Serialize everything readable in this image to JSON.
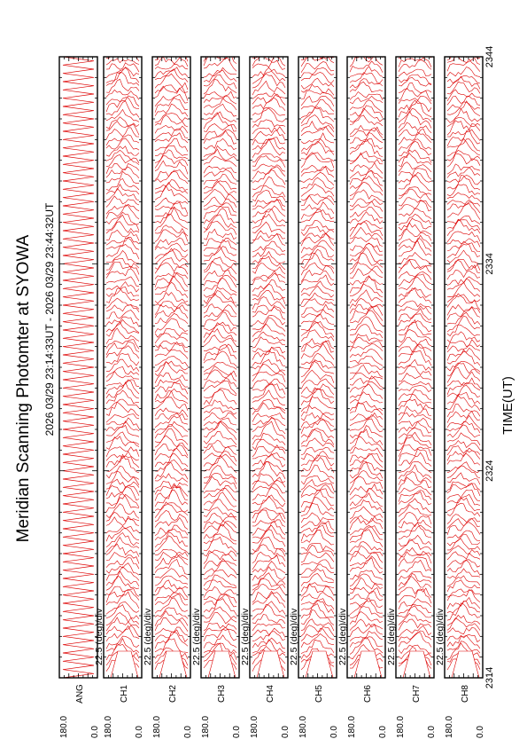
{
  "chart_data": {
    "type": "line",
    "title": "Meridian Scanning Photomter at SYOWA",
    "subtitle": "2026 03/29 23:14:33UT - 2026 03/29 23:44:32UT",
    "xlabel": "TIME(UT)",
    "xlim": [
      2314,
      2344
    ],
    "x_ticks": [
      "2314",
      "2324",
      "2334",
      "2344"
    ],
    "grid": false,
    "colors": {
      "trace": "#dd0000",
      "frame": "#000000"
    },
    "panels": [
      {
        "id": "ANG",
        "label": "ANG",
        "scale": "",
        "ymax": "180.0",
        "ymin": "0.0",
        "kind": "angle"
      },
      {
        "id": "CH1",
        "label": "CH1",
        "scale": "22.5 (deg)/div",
        "ymax": "180.0",
        "ymin": "0.0",
        "kind": "intensity"
      },
      {
        "id": "CH2",
        "label": "CH2",
        "scale": "22.5 (deg)/div",
        "ymax": "180.0",
        "ymin": "0.0",
        "kind": "intensity"
      },
      {
        "id": "CH3",
        "label": "CH3",
        "scale": "22.5 (deg)/div",
        "ymax": "180.0",
        "ymin": "0.0",
        "kind": "intensity"
      },
      {
        "id": "CH4",
        "label": "CH4",
        "scale": "22.5 (deg)/div",
        "ymax": "180.0",
        "ymin": "0.0",
        "kind": "intensity"
      },
      {
        "id": "CH5",
        "label": "CH5",
        "scale": "22.5 (deg)/div",
        "ymax": "180.0",
        "ymin": "0.0",
        "kind": "intensity"
      },
      {
        "id": "CH6",
        "label": "CH6",
        "scale": "22.5 (deg)/div",
        "ymax": "180.0",
        "ymin": "0.0",
        "kind": "intensity"
      },
      {
        "id": "CH7",
        "label": "CH7",
        "scale": "22.5 (deg)/div",
        "ymax": "180.0",
        "ymin": "0.0",
        "kind": "intensity"
      },
      {
        "id": "CH8",
        "label": "CH8",
        "scale": "22.5 (deg)/div",
        "ymax": "180.0",
        "ymin": "0.0",
        "kind": "intensity"
      }
    ]
  }
}
